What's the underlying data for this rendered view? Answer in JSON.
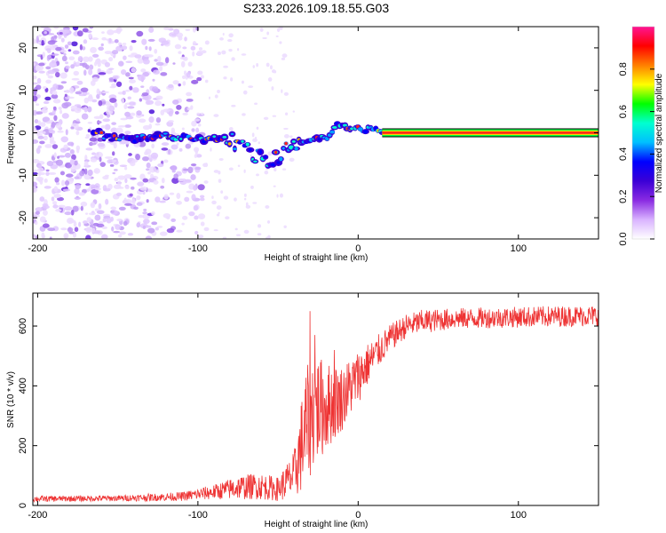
{
  "figure_title": "S233.2026.109.18.55.G03",
  "chart_data": [
    {
      "type": "heatmap",
      "title": "S233.2026.109.18.55.G03",
      "xlabel": "Height of straight line (km)",
      "ylabel": "Frequency (Hz)",
      "xlim": [
        -203,
        150
      ],
      "ylim": [
        -25,
        25
      ],
      "xticks": [
        -200,
        -100,
        0,
        100
      ],
      "yticks": [
        -20,
        -10,
        0,
        10,
        20
      ],
      "colorbar": {
        "label": "Normalized spectral amplitude",
        "range": [
          0,
          1
        ],
        "ticks": [
          0.0,
          0.2,
          0.4,
          0.6,
          0.8
        ],
        "colormap": [
          "#ffffff",
          "#d9b3ff",
          "#8a2be2",
          "#3b00d6",
          "#0000ff",
          "#00bfff",
          "#00ffd0",
          "#00ff00",
          "#ffff00",
          "#ff7f00",
          "#ff0000",
          "#ff1493"
        ]
      },
      "noise_region_x": [
        -203,
        -97
      ],
      "carrier_track": [
        {
          "x": -160,
          "freq": -1.0
        },
        {
          "x": -140,
          "freq": -1.5
        },
        {
          "x": -125,
          "freq": -0.5
        },
        {
          "x": -110,
          "freq": -1.2
        },
        {
          "x": -95,
          "freq": -1.5
        },
        {
          "x": -82,
          "freq": -1.0
        },
        {
          "x": -72,
          "freq": -3.5
        },
        {
          "x": -62,
          "freq": -5.5
        },
        {
          "x": -52,
          "freq": -6.5
        },
        {
          "x": -42,
          "freq": -3.0
        },
        {
          "x": -30,
          "freq": -1.5
        },
        {
          "x": -20,
          "freq": -1.0
        },
        {
          "x": -12,
          "freq": 2.0
        },
        {
          "x": 0,
          "freq": 1.0
        },
        {
          "x": 15,
          "freq": 0.5
        },
        {
          "x": 150,
          "freq": 0.0
        }
      ]
    },
    {
      "type": "line",
      "xlabel": "Height of straight line (km)",
      "ylabel": "SNR (10 * v/v)",
      "xlim": [
        -203,
        150
      ],
      "ylim": [
        0,
        710
      ],
      "xticks": [
        -200,
        -100,
        0,
        100
      ],
      "yticks": [
        0,
        200,
        400,
        600
      ],
      "color": "#ee3333",
      "envelope": {
        "x": [
          -203,
          -150,
          -110,
          -90,
          -75,
          -62,
          -50,
          -40,
          -33,
          -28,
          -20,
          -10,
          0,
          10,
          20,
          30,
          40,
          60,
          100,
          150
        ],
        "mean": [
          22,
          24,
          30,
          45,
          60,
          65,
          55,
          100,
          250,
          320,
          330,
          360,
          430,
          500,
          560,
          600,
          615,
          625,
          630,
          635
        ],
        "amp": [
          10,
          10,
          15,
          25,
          40,
          45,
          40,
          80,
          200,
          200,
          150,
          110,
          90,
          60,
          45,
          40,
          40,
          35,
          35,
          35
        ]
      },
      "spikes": [
        {
          "x": -30,
          "y": 650
        },
        {
          "x": -27,
          "y": 570
        },
        {
          "x": -15,
          "y": 520
        }
      ]
    }
  ]
}
